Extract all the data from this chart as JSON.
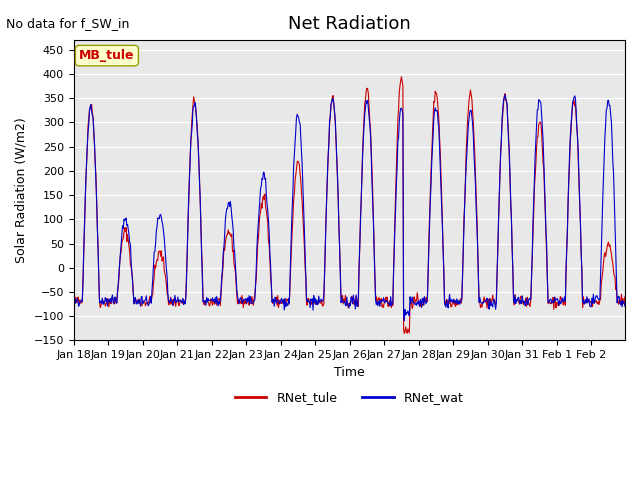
{
  "title": "Net Radiation",
  "xlabel": "Time",
  "ylabel": "Solar Radiation (W/m2)",
  "no_data_text": "No data for f_SW_in",
  "station_label": "MB_tule",
  "ylim": [
    -150,
    470
  ],
  "yticks": [
    -150,
    -100,
    -50,
    0,
    50,
    100,
    150,
    200,
    250,
    300,
    350,
    400,
    450
  ],
  "date_labels": [
    "Jan 18",
    "Jan 19",
    "Jan 20",
    "Jan 21",
    "Jan 22",
    "Jan 23",
    "Jan 24",
    "Jan 25",
    "Jan 26",
    "Jan 27",
    "Jan 28",
    "Jan 29",
    "Jan 30",
    "Jan 31",
    "Feb 1",
    "Feb 2"
  ],
  "line_color_tule": "#cc0000",
  "line_color_wat": "#0000cc",
  "background_color": "#e8e8e8",
  "legend_label_tule": "RNet_tule",
  "legend_label_wat": "RNet_wat",
  "figsize": [
    6.4,
    4.8
  ],
  "dpi": 100
}
